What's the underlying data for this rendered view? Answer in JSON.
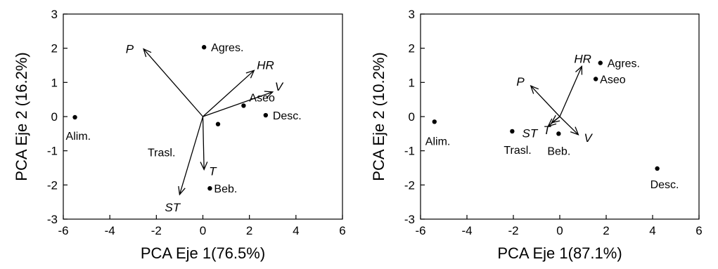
{
  "chart_data": [
    {
      "type": "scatter",
      "subtype": "biplot",
      "xlabel": "PCA Eje 1(76.5%)",
      "ylabel": "PCA Eje 2 (16.2%)",
      "xlim": [
        -6,
        6
      ],
      "ylim": [
        -3,
        3
      ],
      "xticks": [
        -6,
        -4,
        -2,
        0,
        2,
        4,
        6
      ],
      "yticks": [
        -3,
        -2,
        -1,
        0,
        1,
        2,
        3
      ],
      "grid": false,
      "points": [
        {
          "label": "Alim.",
          "x": -5.5,
          "y": -0.02
        },
        {
          "label": "Agres.",
          "x": 0.05,
          "y": 2.03
        },
        {
          "label": "Aseo",
          "x": 1.75,
          "y": 0.32
        },
        {
          "label": "Desc.",
          "x": 2.7,
          "y": 0.04
        },
        {
          "label": "Trasl.",
          "x": 0.65,
          "y": -0.22
        },
        {
          "label": "Beb.",
          "x": 0.3,
          "y": -2.1
        }
      ],
      "vectors": [
        {
          "label": "P",
          "x": -2.55,
          "y": 1.98
        },
        {
          "label": "HR",
          "x": 2.2,
          "y": 1.35
        },
        {
          "label": "V",
          "x": 3.0,
          "y": 0.72
        },
        {
          "label": "T",
          "x": 0.05,
          "y": -1.55
        },
        {
          "label": "ST",
          "x": -1.0,
          "y": -2.28
        }
      ]
    },
    {
      "type": "scatter",
      "subtype": "biplot",
      "xlabel": "PCA Eje 1(87.1%)",
      "ylabel": "PCA Eje 2 (10.2%)",
      "xlim": [
        -6,
        6
      ],
      "ylim": [
        -3,
        3
      ],
      "xticks": [
        -6,
        -4,
        -2,
        0,
        2,
        4,
        6
      ],
      "yticks": [
        -3,
        -2,
        -1,
        0,
        1,
        2,
        3
      ],
      "grid": false,
      "points": [
        {
          "label": "Alim.",
          "x": -5.4,
          "y": -0.15
        },
        {
          "label": "Agres.",
          "x": 1.75,
          "y": 1.57
        },
        {
          "label": "Aseo",
          "x": 1.55,
          "y": 1.1
        },
        {
          "label": "Trasl.",
          "x": -2.05,
          "y": -0.43
        },
        {
          "label": "Beb.",
          "x": -0.05,
          "y": -0.5
        },
        {
          "label": "Desc.",
          "x": 4.2,
          "y": -1.52
        }
      ],
      "vectors": [
        {
          "label": "HR",
          "x": 0.95,
          "y": 1.47
        },
        {
          "label": "P",
          "x": -1.25,
          "y": 0.9
        },
        {
          "label": "V",
          "x": 0.8,
          "y": -0.53
        },
        {
          "label": "ST",
          "x": -0.5,
          "y": -0.28
        },
        {
          "label": "T",
          "x": -0.35,
          "y": -0.18
        }
      ]
    }
  ]
}
